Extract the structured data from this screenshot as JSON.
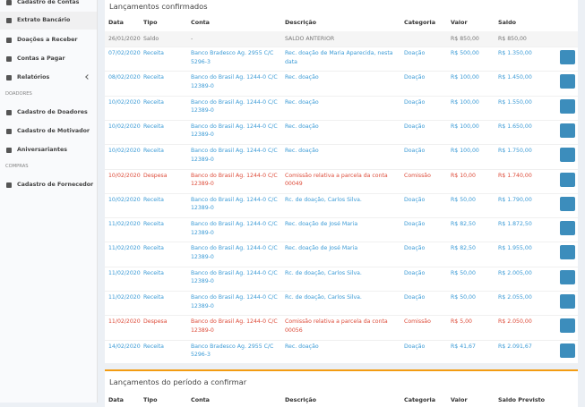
{
  "sidebar": {
    "items": [
      {
        "label": "Cadastro de Contas",
        "kind": "item"
      },
      {
        "label": "Extrato Bancário",
        "kind": "item"
      },
      {
        "label": "Doações a Receber",
        "kind": "item"
      },
      {
        "label": "Contas a Pagar",
        "kind": "item"
      },
      {
        "label": "Relatórios",
        "kind": "item"
      },
      {
        "label": "DOADORES",
        "kind": "section"
      },
      {
        "label": "Cadastro de Doadores",
        "kind": "item"
      },
      {
        "label": "Cadastro de Motivador",
        "kind": "item"
      },
      {
        "label": "Aniversariantes",
        "kind": "item"
      },
      {
        "label": "COMPRAS",
        "kind": "section"
      },
      {
        "label": "Cadastro de Fornecedor",
        "kind": "item"
      }
    ]
  },
  "confirmed": {
    "title": "Lançamentos confirmados",
    "headers": [
      "Data",
      "Tipo",
      "Conta",
      "Descrição",
      "Categoria",
      "Valor",
      "Saldo"
    ],
    "rows": [
      {
        "color": "#777777",
        "cells": [
          "26/01/2020",
          "Saldo",
          "-",
          "SALDO ANTERIOR",
          "",
          "R$ 850,00",
          "R$ 850,00"
        ]
      },
      {
        "color": "#3c9bd6",
        "cells": [
          "07/02/2020",
          "Receita",
          "Banco Bradesco Ag. 2955 C/C 5296-3",
          "Rec. doação de Maria Aparecida, nesta data",
          "Doação",
          "R$ 500,00",
          "R$ 1.350,00"
        ]
      },
      {
        "color": "#3c9bd6",
        "cells": [
          "08/02/2020",
          "Receita",
          "Banco do Brasil Ag. 1244-0 C/C 12389-0",
          "Rec. doação",
          "Doação",
          "R$ 100,00",
          "R$ 1.450,00"
        ]
      },
      {
        "color": "#3c9bd6",
        "cells": [
          "10/02/2020",
          "Receita",
          "Banco do Brasil Ag. 1244-0 C/C 12389-0",
          "Rec. doação",
          "Doação",
          "R$ 100,00",
          "R$ 1.550,00"
        ]
      },
      {
        "color": "#3c9bd6",
        "cells": [
          "10/02/2020",
          "Receita",
          "Banco do Brasil Ag. 1244-0 C/C 12389-0",
          "Rec. doação",
          "Doação",
          "R$ 100,00",
          "R$ 1.650,00"
        ]
      },
      {
        "color": "#3c9bd6",
        "cells": [
          "10/02/2020",
          "Receita",
          "Banco do Brasil Ag. 1244-0 C/C 12389-0",
          "Rec. doação",
          "Doação",
          "R$ 100,00",
          "R$ 1.750,00"
        ]
      },
      {
        "color": "#dd4b39",
        "cells": [
          "10/02/2020",
          "Despesa",
          "Banco do Brasil Ag. 1244-0 C/C 12389-0",
          "Comissão relativa a parcela da conta 00049",
          "Comissão",
          "R$ 10,00",
          "R$ 1.740,00"
        ]
      },
      {
        "color": "#3c9bd6",
        "cells": [
          "10/02/2020",
          "Receita",
          "Banco do Brasil Ag. 1244-0 C/C 12389-0",
          "Rc. de doação, Carlos Silva.",
          "Doação",
          "R$ 50,00",
          "R$ 1.790,00"
        ]
      },
      {
        "color": "#3c9bd6",
        "cells": [
          "11/02/2020",
          "Receita",
          "Banco do Brasil Ag. 1244-0 C/C 12389-0",
          "Rec. doação de José Maria",
          "Doação",
          "R$ 82,50",
          "R$ 1.872,50"
        ]
      },
      {
        "color": "#3c9bd6",
        "cells": [
          "11/02/2020",
          "Receita",
          "Banco do Brasil Ag. 1244-0 C/C 12389-0",
          "Rec. doação de José Maria",
          "Doação",
          "R$ 82,50",
          "R$ 1.955,00"
        ]
      },
      {
        "color": "#3c9bd6",
        "cells": [
          "11/02/2020",
          "Receita",
          "Banco do Brasil Ag. 1244-0 C/C 12389-0",
          "Rc. de doação, Carlos Silva.",
          "Doação",
          "R$ 50,00",
          "R$ 2.005,00"
        ]
      },
      {
        "color": "#3c9bd6",
        "cells": [
          "11/02/2020",
          "Receita",
          "Banco do Brasil Ag. 1244-0 C/C 12389-0",
          "Rc. de doação, Carlos Silva.",
          "Doação",
          "R$ 50,00",
          "R$ 2.055,00"
        ]
      },
      {
        "color": "#dd4b39",
        "cells": [
          "11/02/2020",
          "Despesa",
          "Banco do Brasil Ag. 1244-0 C/C 12389-0",
          "Comissão relativa a parcela da conta 00056",
          "Comissão",
          "R$ 5,00",
          "R$ 2.050,00"
        ]
      },
      {
        "color": "#3c9bd6",
        "cells": [
          "14/02/2020",
          "Receita",
          "Banco Bradesco Ag. 2955 C/C 5296-3",
          "Rec. doação",
          "Doação",
          "R$ 41,67",
          "R$ 2.091,67"
        ]
      }
    ]
  },
  "pending": {
    "title": "Lançamentos do período a confirmar",
    "headers": [
      "Data",
      "Tipo",
      "Conta",
      "Descrição",
      "Categoria",
      "Valor",
      "Saldo Previsto"
    ]
  }
}
